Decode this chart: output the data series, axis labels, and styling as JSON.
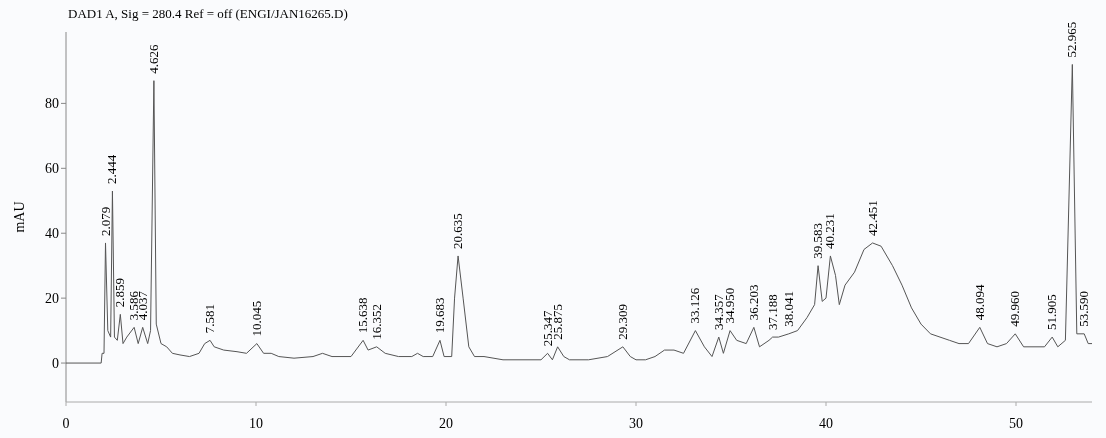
{
  "chart_data": {
    "type": "line",
    "title": "DAD1 A, Sig = 280.4 Ref = off (ENGI/JAN16265.D)",
    "ylabel": "mAU",
    "xlim": [
      0,
      54
    ],
    "ylim": [
      -12,
      102
    ],
    "xticks": [
      0,
      10,
      20,
      30,
      40,
      50
    ],
    "yticks": [
      0,
      20,
      40,
      60,
      80
    ],
    "grid": false,
    "marker": "none",
    "line_style": "solid",
    "series": [
      {
        "color": "#555555",
        "x": [
          0,
          1.85,
          1.9,
          2.0,
          2.079,
          2.2,
          2.35,
          2.444,
          2.55,
          2.7,
          2.859,
          3.0,
          3.2,
          3.586,
          3.8,
          4.037,
          4.3,
          4.45,
          4.626,
          4.75,
          5.0,
          5.3,
          5.6,
          6.0,
          6.5,
          7.0,
          7.3,
          7.581,
          7.8,
          8.3,
          9.0,
          9.5,
          10.045,
          10.4,
          10.8,
          11.2,
          12,
          13,
          13.5,
          14,
          15,
          15.638,
          15.9,
          16.352,
          16.8,
          17.5,
          18.2,
          18.5,
          18.8,
          19.3,
          19.683,
          19.9,
          20.3,
          20.45,
          20.635,
          20.9,
          21.2,
          21.5,
          22,
          23,
          24,
          25,
          25.347,
          25.6,
          25.875,
          26.2,
          26.5,
          27.5,
          28.5,
          29.309,
          29.7,
          30,
          30.5,
          31,
          31.5,
          32,
          32.5,
          33.126,
          33.6,
          34,
          34.357,
          34.6,
          34.95,
          35.3,
          35.8,
          36.203,
          36.5,
          37.0,
          37.188,
          37.5,
          38.041,
          38.5,
          39,
          39.4,
          39.583,
          39.8,
          40.0,
          40.231,
          40.5,
          40.7,
          41,
          41.5,
          42,
          42.451,
          42.9,
          43.5,
          44,
          44.5,
          45,
          45.5,
          46,
          46.5,
          47,
          47.5,
          48.094,
          48.5,
          49,
          49.5,
          49.96,
          50.4,
          51,
          51.5,
          51.905,
          52.2,
          52.6,
          52.965,
          53.2,
          53.59,
          53.8,
          54
        ],
        "values": [
          0,
          0,
          3,
          3,
          37,
          10,
          8,
          53,
          8,
          7,
          15,
          6,
          8,
          11,
          6,
          11,
          6,
          10,
          87,
          12,
          6,
          5,
          3,
          2.5,
          2,
          3,
          6,
          7,
          5,
          4,
          3.5,
          3,
          6,
          3,
          3,
          2,
          1.5,
          2,
          3,
          2,
          2,
          7,
          4,
          5,
          3,
          2,
          2,
          3,
          2,
          2,
          7,
          2,
          2,
          20,
          33,
          20,
          5,
          2,
          2,
          1,
          1,
          1,
          3,
          1,
          5,
          2,
          1,
          1,
          2,
          5,
          2,
          1,
          1,
          2,
          4,
          4,
          3,
          10,
          5,
          2,
          8,
          3,
          10,
          7,
          6,
          11,
          5,
          7,
          8,
          8,
          9,
          10,
          14,
          18,
          30,
          19,
          20,
          33,
          27,
          18,
          24,
          28,
          35,
          37,
          36,
          30,
          24,
          17,
          12,
          9,
          8,
          7,
          6,
          6,
          11,
          6,
          5,
          6,
          9,
          5,
          5,
          5,
          8,
          5,
          7,
          92,
          9,
          9,
          6,
          6
        ]
      }
    ],
    "annotations": [
      {
        "text": "2.079",
        "x": 2.079,
        "y": 37
      },
      {
        "text": "2.444",
        "x": 2.444,
        "y": 53
      },
      {
        "text": "2.859",
        "x": 2.859,
        "y": 15
      },
      {
        "text": "3.586",
        "x": 3.586,
        "y": 11
      },
      {
        "text": "4.037",
        "x": 4.037,
        "y": 11
      },
      {
        "text": "4.626",
        "x": 4.626,
        "y": 87
      },
      {
        "text": "7.581",
        "x": 7.581,
        "y": 7
      },
      {
        "text": "10.045",
        "x": 10.045,
        "y": 6
      },
      {
        "text": "15.638",
        "x": 15.638,
        "y": 7
      },
      {
        "text": "16.352",
        "x": 16.352,
        "y": 5
      },
      {
        "text": "19.683",
        "x": 19.683,
        "y": 7
      },
      {
        "text": "20.635",
        "x": 20.635,
        "y": 33
      },
      {
        "text": "25.347",
        "x": 25.347,
        "y": 3
      },
      {
        "text": "25.875",
        "x": 25.875,
        "y": 5
      },
      {
        "text": "29.309",
        "x": 29.309,
        "y": 5
      },
      {
        "text": "33.126",
        "x": 33.126,
        "y": 10
      },
      {
        "text": "34.357",
        "x": 34.357,
        "y": 8
      },
      {
        "text": "34.950",
        "x": 34.95,
        "y": 10
      },
      {
        "text": "36.203",
        "x": 36.203,
        "y": 11
      },
      {
        "text": "37.188",
        "x": 37.188,
        "y": 8
      },
      {
        "text": "38.041",
        "x": 38.041,
        "y": 9
      },
      {
        "text": "39.583",
        "x": 39.583,
        "y": 30
      },
      {
        "text": "40.231",
        "x": 40.231,
        "y": 33
      },
      {
        "text": "42.451",
        "x": 42.451,
        "y": 37
      },
      {
        "text": "48.094",
        "x": 48.094,
        "y": 11
      },
      {
        "text": "49.960",
        "x": 49.96,
        "y": 9
      },
      {
        "text": "51.905",
        "x": 51.905,
        "y": 8
      },
      {
        "text": "52.965",
        "x": 52.965,
        "y": 92
      },
      {
        "text": "53.590",
        "x": 53.59,
        "y": 9
      }
    ]
  }
}
